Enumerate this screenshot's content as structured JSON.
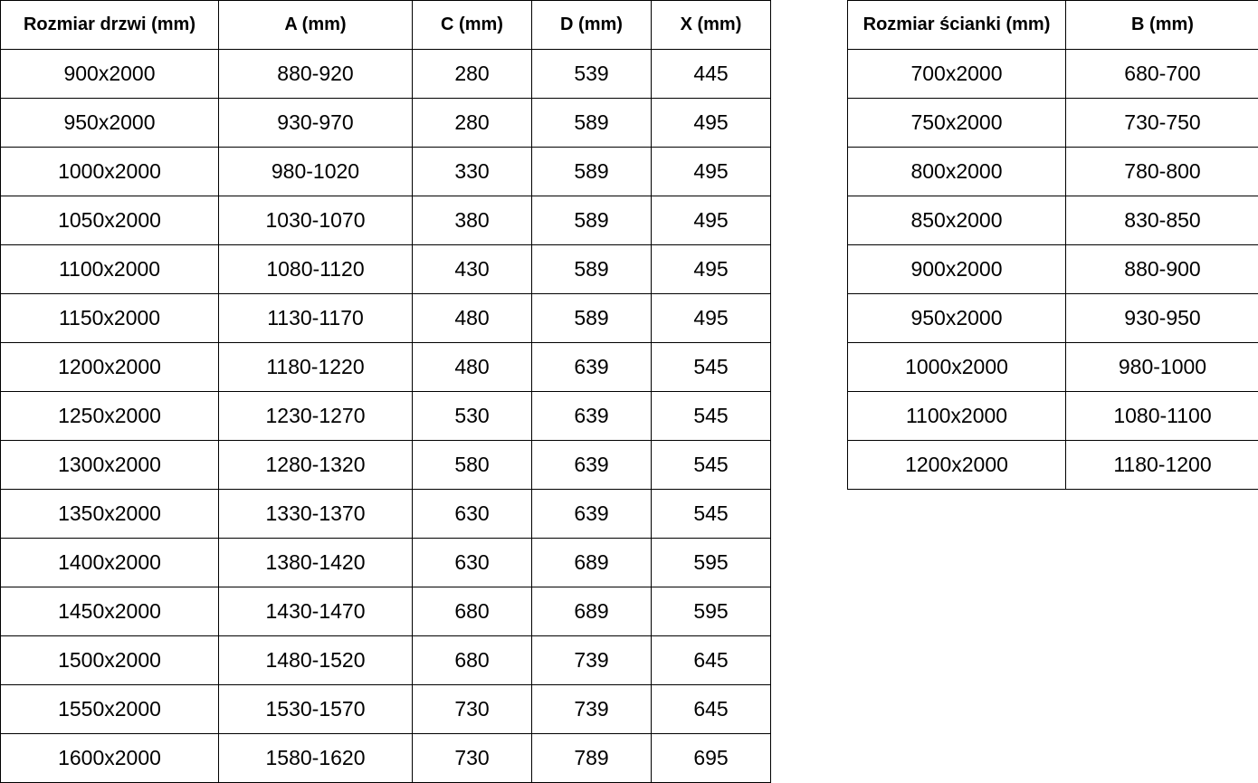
{
  "doors_table": {
    "headers": [
      "Rozmiar drzwi (mm)",
      "A (mm)",
      "C (mm)",
      "D (mm)",
      "X (mm)"
    ],
    "rows": [
      [
        "900x2000",
        "880-920",
        "280",
        "539",
        "445"
      ],
      [
        "950x2000",
        "930-970",
        "280",
        "589",
        "495"
      ],
      [
        "1000x2000",
        "980-1020",
        "330",
        "589",
        "495"
      ],
      [
        "1050x2000",
        "1030-1070",
        "380",
        "589",
        "495"
      ],
      [
        "1100x2000",
        "1080-1120",
        "430",
        "589",
        "495"
      ],
      [
        "1150x2000",
        "1130-1170",
        "480",
        "589",
        "495"
      ],
      [
        "1200x2000",
        "1180-1220",
        "480",
        "639",
        "545"
      ],
      [
        "1250x2000",
        "1230-1270",
        "530",
        "639",
        "545"
      ],
      [
        "1300x2000",
        "1280-1320",
        "580",
        "639",
        "545"
      ],
      [
        "1350x2000",
        "1330-1370",
        "630",
        "639",
        "545"
      ],
      [
        "1400x2000",
        "1380-1420",
        "630",
        "689",
        "595"
      ],
      [
        "1450x2000",
        "1430-1470",
        "680",
        "689",
        "595"
      ],
      [
        "1500x2000",
        "1480-1520",
        "680",
        "739",
        "645"
      ],
      [
        "1550x2000",
        "1530-1570",
        "730",
        "739",
        "645"
      ],
      [
        "1600x2000",
        "1580-1620",
        "730",
        "789",
        "695"
      ]
    ]
  },
  "walls_table": {
    "headers": [
      "Rozmiar ścianki (mm)",
      "B (mm)"
    ],
    "rows": [
      [
        "700x2000",
        "680-700"
      ],
      [
        "750x2000",
        "730-750"
      ],
      [
        "800x2000",
        "780-800"
      ],
      [
        "850x2000",
        "830-850"
      ],
      [
        "900x2000",
        "880-900"
      ],
      [
        "950x2000",
        "930-950"
      ],
      [
        "1000x2000",
        "980-1000"
      ],
      [
        "1100x2000",
        "1080-1100"
      ],
      [
        "1200x2000",
        "1180-1200"
      ]
    ]
  }
}
